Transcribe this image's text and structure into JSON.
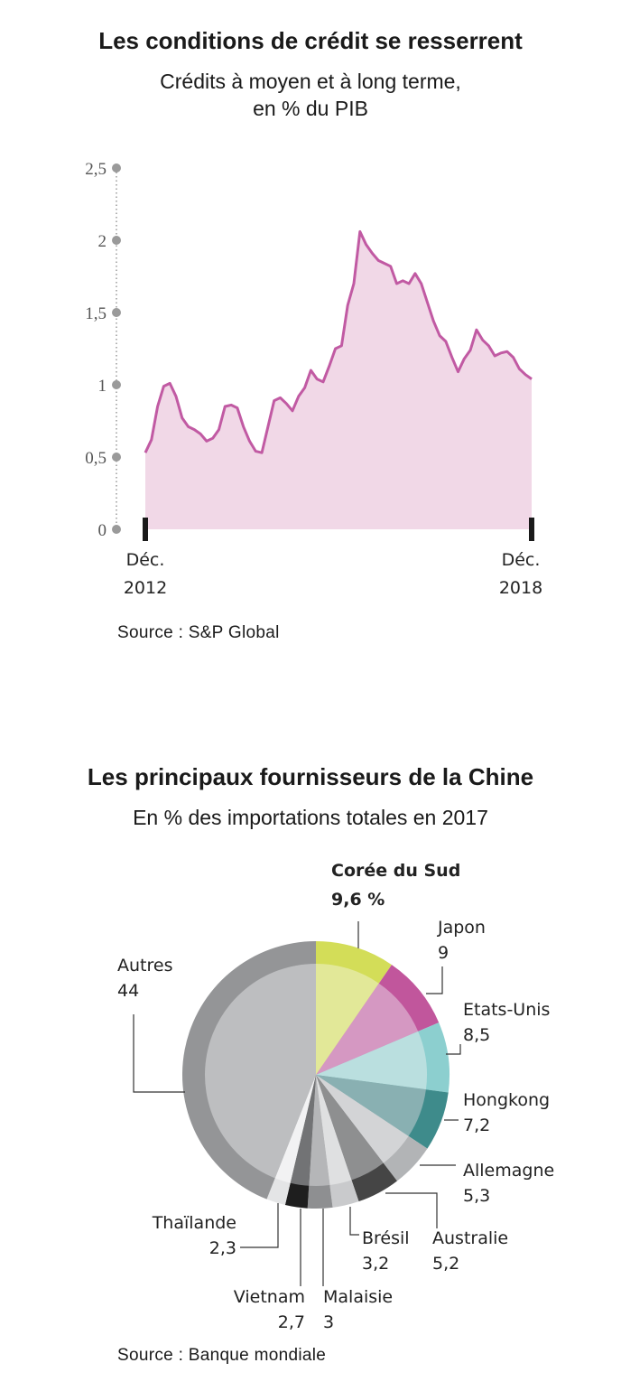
{
  "chart_data": [
    {
      "type": "area",
      "title": "Les conditions de crédit se resserrent",
      "subtitle_line1": "Crédits à moyen et à long terme,",
      "subtitle_line2": "en % du PIB",
      "ylim": [
        0,
        2.5
      ],
      "y_ticks": [
        "0",
        "0,5",
        "1",
        "1,5",
        "2",
        "2,5"
      ],
      "x_start_label": [
        "Déc.",
        "2012"
      ],
      "x_end_label": [
        "Déc.",
        "2018"
      ],
      "colors": {
        "line": "#c15aa3",
        "fill": "#f1d8e7",
        "axis": "#9a9a9a"
      },
      "values": [
        0.53,
        0.62,
        0.85,
        0.99,
        1.01,
        0.92,
        0.77,
        0.71,
        0.69,
        0.66,
        0.61,
        0.63,
        0.69,
        0.85,
        0.86,
        0.84,
        0.71,
        0.61,
        0.54,
        0.53,
        0.71,
        0.89,
        0.91,
        0.87,
        0.82,
        0.92,
        0.98,
        1.1,
        1.04,
        1.02,
        1.13,
        1.25,
        1.27,
        1.55,
        1.7,
        2.06,
        1.97,
        1.91,
        1.86,
        1.84,
        1.82,
        1.7,
        1.72,
        1.7,
        1.77,
        1.7,
        1.57,
        1.44,
        1.34,
        1.3,
        1.19,
        1.09,
        1.18,
        1.24,
        1.38,
        1.31,
        1.27,
        1.2,
        1.22,
        1.23,
        1.19,
        1.11,
        1.07,
        1.04
      ],
      "source": "Source : S&P Global"
    },
    {
      "type": "pie",
      "title": "Les principaux fournisseurs de la Chine",
      "subtitle": "En % des importations totales en 2017",
      "slices": [
        {
          "label": "Corée du Sud",
          "value": 9.6,
          "display": "9,6 %",
          "outer": "#d3dd58",
          "inner": "#e2e898"
        },
        {
          "label": "Japon",
          "value": 9,
          "display": "9",
          "outer": "#c1569c",
          "inner": "#d598c2"
        },
        {
          "label": "Etats-Unis",
          "value": 8.5,
          "display": "8,5",
          "outer": "#8ccfcf",
          "inner": "#badfdf"
        },
        {
          "label": "Hongkong",
          "value": 7.2,
          "display": "7,2",
          "outer": "#3e8b8b",
          "inner": "#89b0b2"
        },
        {
          "label": "Allemagne",
          "value": 5.3,
          "display": "5,3",
          "outer": "#b2b4b6",
          "inner": "#d3d4d6"
        },
        {
          "label": "Australie",
          "value": 5.2,
          "display": "5,2",
          "outer": "#454545",
          "inner": "#8e8f90"
        },
        {
          "label": "Brésil",
          "value": 3.2,
          "display": "3,2",
          "outer": "#c9cacc",
          "inner": "#dfe0e1"
        },
        {
          "label": "Malaisie",
          "value": 3,
          "display": "3",
          "outer": "#8e8f91",
          "inner": "#b5b6b8"
        },
        {
          "label": "Vietnam",
          "value": 2.7,
          "display": "2,7",
          "outer": "#1e1e1e",
          "inner": "#727375"
        },
        {
          "label": "Thaïlande",
          "value": 2.3,
          "display": "2,3",
          "outer": "#e4e5e6",
          "inner": "#f2f2f3"
        },
        {
          "label": "Autres",
          "value": 44,
          "display": "44",
          "outer": "#949597",
          "inner": "#bdbec0"
        }
      ],
      "leader_color": "#333333",
      "source": "Source : Banque mondiale"
    }
  ]
}
